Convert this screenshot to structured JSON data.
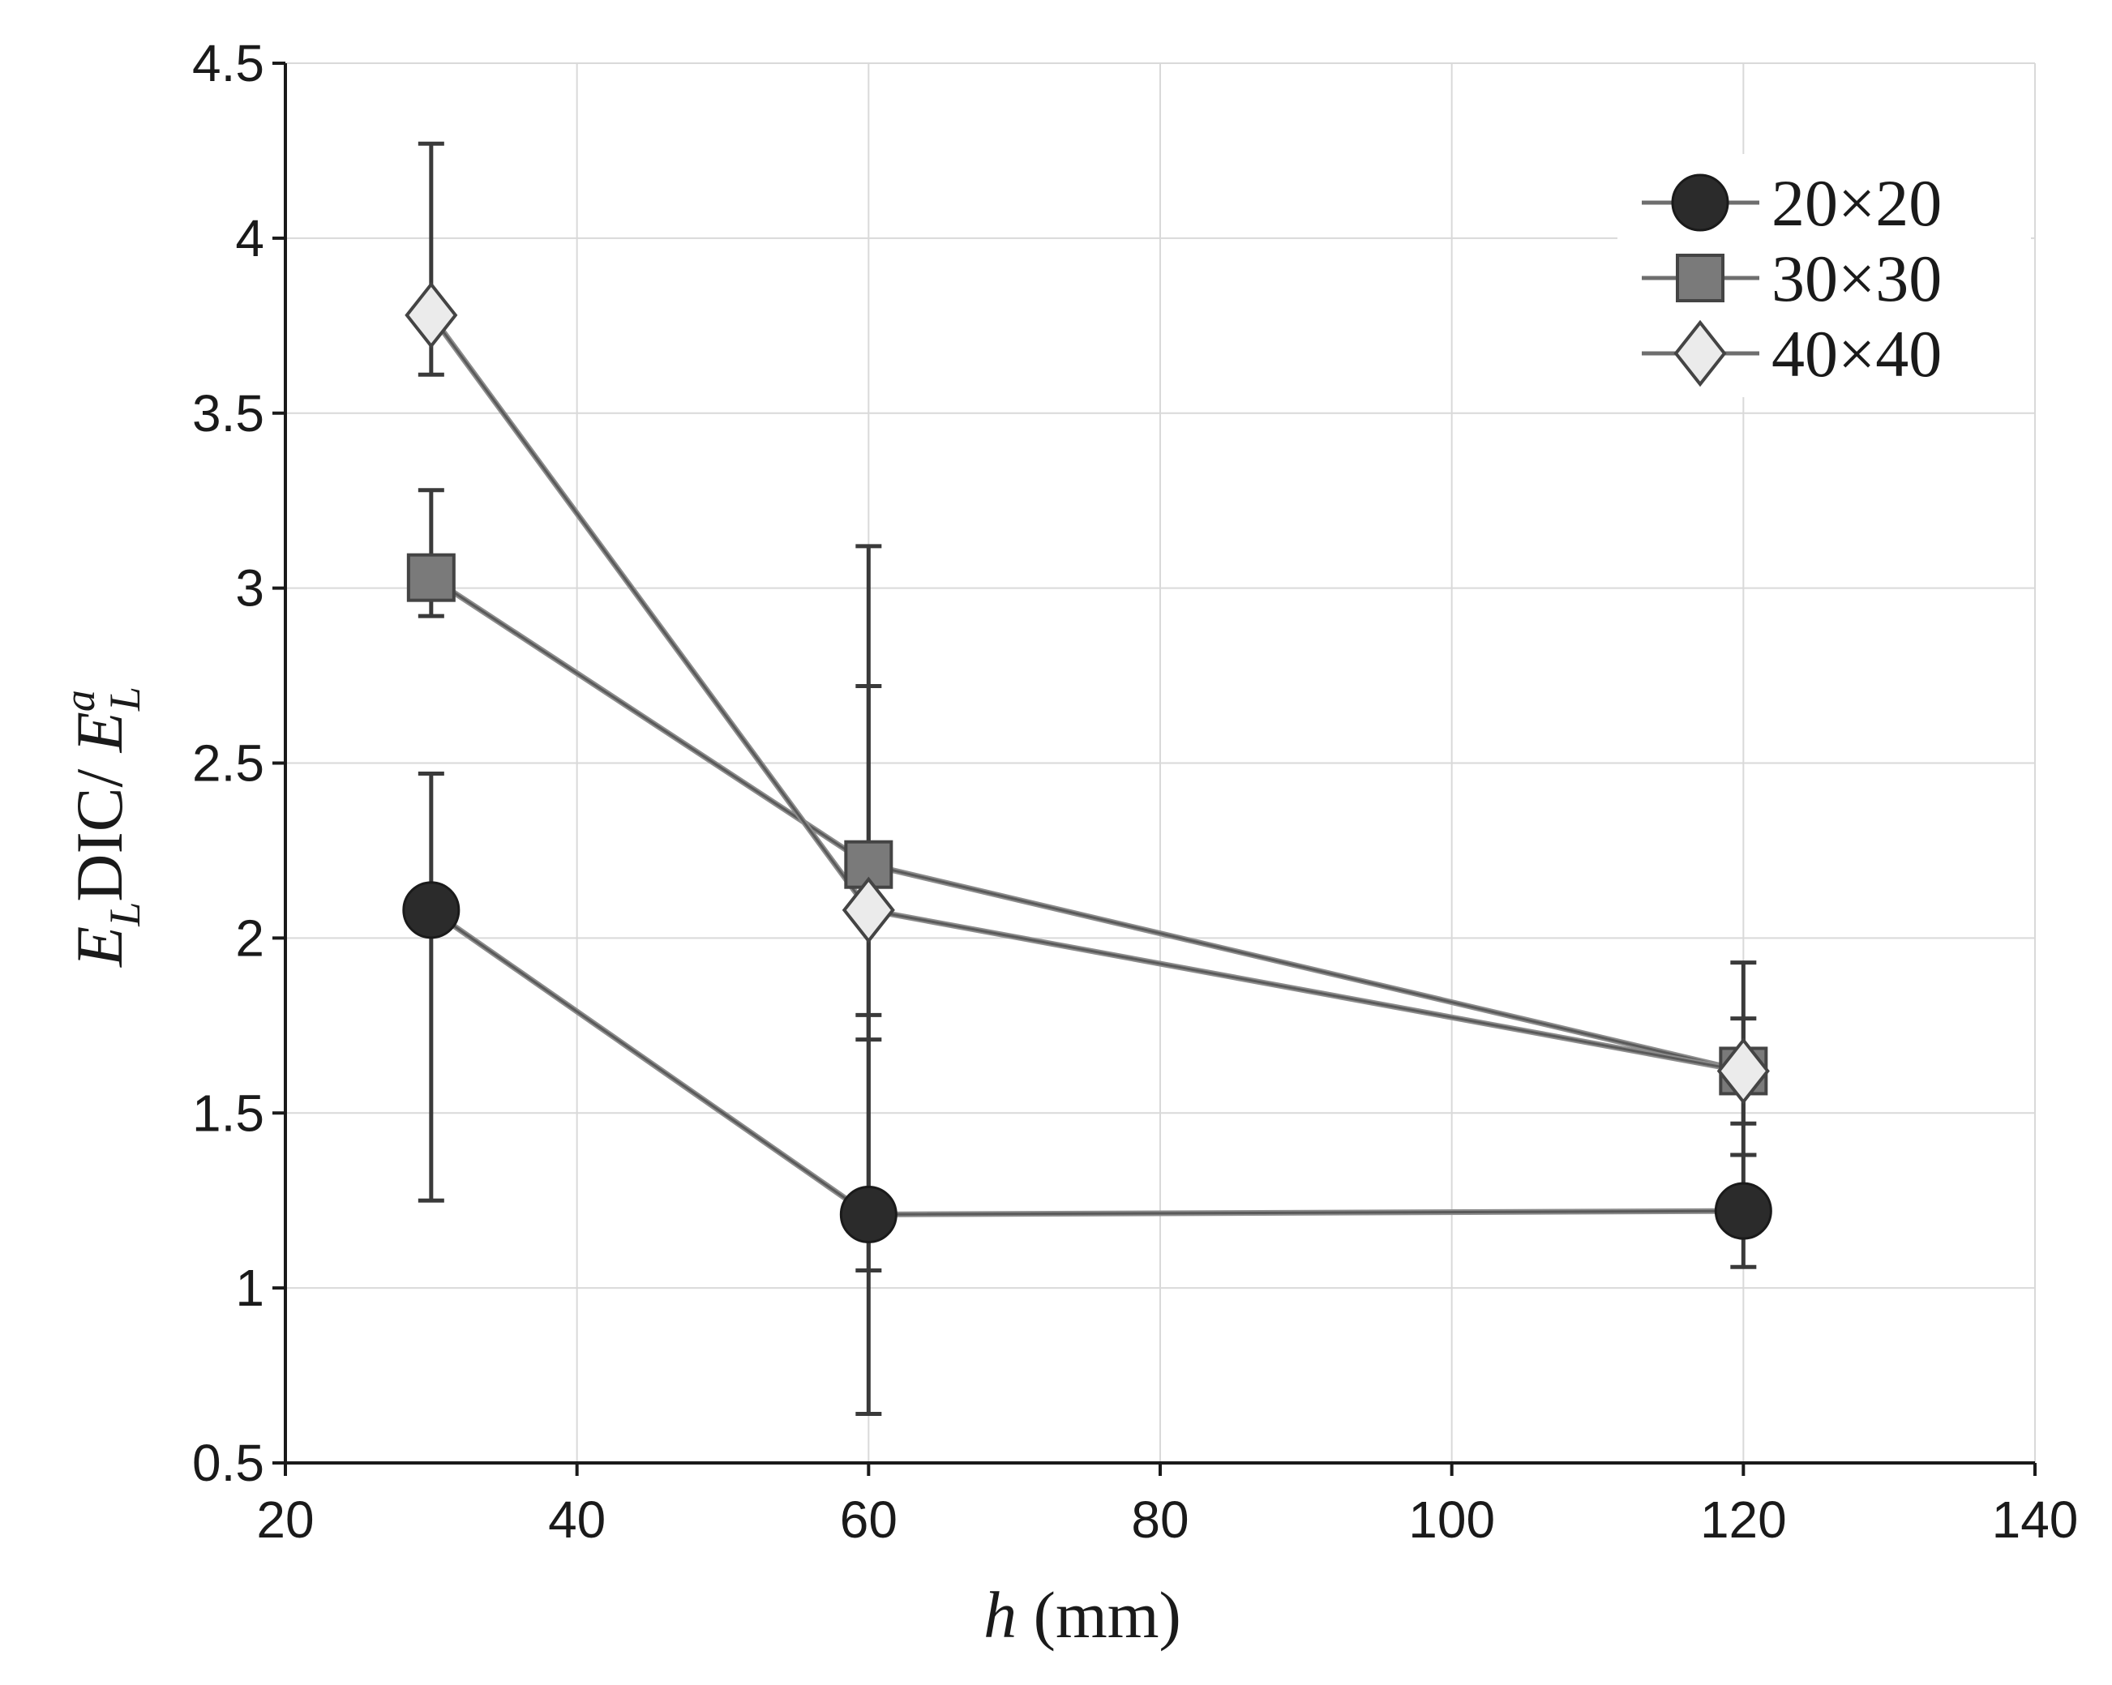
{
  "chart_data": {
    "type": "line",
    "title": "",
    "xlabel": "h (mm)",
    "xlabel_parts": {
      "var": "h",
      "unit": " (mm)"
    },
    "ylabel": "E_L DIC / E_L^a",
    "ylabel_parts": {
      "e1": "E",
      "sub1": "L",
      "mid": "DIC/ ",
      "e2": "E",
      "sub2": "L",
      "sup2": "a"
    },
    "xlim": [
      20,
      140
    ],
    "ylim": [
      0.5,
      4.5
    ],
    "xticks": [
      20,
      40,
      60,
      80,
      100,
      120,
      140
    ],
    "yticks": [
      0.5,
      1,
      1.5,
      2,
      2.5,
      3,
      3.5,
      4,
      4.5
    ],
    "xtick_labels": [
      "20",
      "40",
      "60",
      "80",
      "100",
      "120",
      "140"
    ],
    "ytick_labels": [
      "0.5",
      "1",
      "1.5",
      "2",
      "2.5",
      "3",
      "3.5",
      "4",
      "4.5"
    ],
    "grid": true,
    "legend_position": "top-right",
    "x": [
      30,
      60,
      120
    ],
    "series": [
      {
        "name": "20×20",
        "marker": "circle",
        "color": "#2b2b2b",
        "values": [
          2.08,
          1.21,
          1.22
        ],
        "err_low": [
          1.25,
          0.64,
          1.06
        ],
        "err_high": [
          2.47,
          1.78,
          1.38
        ]
      },
      {
        "name": "30×30",
        "marker": "square",
        "color": "#7a7a7a",
        "values": [
          3.03,
          2.21,
          1.62
        ],
        "err_low": [
          2.92,
          1.05,
          1.47
        ],
        "err_high": [
          3.28,
          2.72,
          1.77
        ]
      },
      {
        "name": "40×40",
        "marker": "diamond",
        "color": "#ebebeb",
        "values": [
          3.78,
          2.08,
          1.62
        ],
        "err_low": [
          3.61,
          1.71,
          1.38
        ],
        "err_high": [
          4.27,
          3.12,
          1.93
        ]
      }
    ]
  }
}
